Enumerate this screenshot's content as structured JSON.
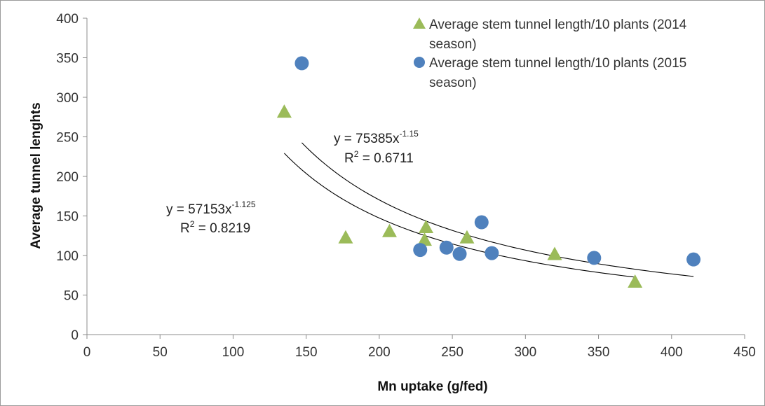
{
  "chart_data": {
    "type": "scatter",
    "title": "",
    "xlabel": "Mn uptake (g/fed)",
    "ylabel": "Average tunnel lenghts",
    "xlim": [
      0,
      450
    ],
    "ylim": [
      0,
      400
    ],
    "x_ticks": [
      "0",
      "50",
      "100",
      "150",
      "200",
      "250",
      "300",
      "350",
      "400",
      "450"
    ],
    "y_ticks": [
      "0",
      "50",
      "100",
      "150",
      "200",
      "250",
      "300",
      "350",
      "400"
    ],
    "grid": false,
    "legend_position": "top-right",
    "series": [
      {
        "name": "Average stem tunnel length/10 plants (2014 season)",
        "name_line1": "Average stem tunnel length/10 plants (2014",
        "name_line2": "season)",
        "marker": "triangle",
        "color": "#9bbb59",
        "x": [
          135,
          177,
          207,
          231,
          232,
          260,
          320,
          375
        ],
        "y": [
          281,
          122,
          130,
          119,
          135,
          122,
          101,
          66
        ],
        "trendline": {
          "type": "power",
          "a": 57153,
          "b": -1.125,
          "x_range": [
            135,
            375
          ],
          "equation_text": "y = 57153x",
          "equation_exp": "-1.125",
          "r2_label": "R",
          "r2_value": " = 0.8219"
        }
      },
      {
        "name": "Average stem tunnel length/10 plants (2015 season)",
        "name_line1": "Average stem tunnel length/10 plants (2015",
        "name_line2": "season)",
        "marker": "circle",
        "color": "#4f81bd",
        "x": [
          147,
          228,
          246,
          255,
          270,
          277,
          347,
          415
        ],
        "y": [
          343,
          107,
          110,
          102,
          142,
          103,
          97,
          95
        ],
        "trendline": {
          "type": "power",
          "a": 75385,
          "b": -1.15,
          "x_range": [
            147,
            415
          ],
          "equation_text": "y = 75385x",
          "equation_exp": "-1.15",
          "r2_label": "R",
          "r2_value": " = 0.6711"
        }
      }
    ]
  }
}
